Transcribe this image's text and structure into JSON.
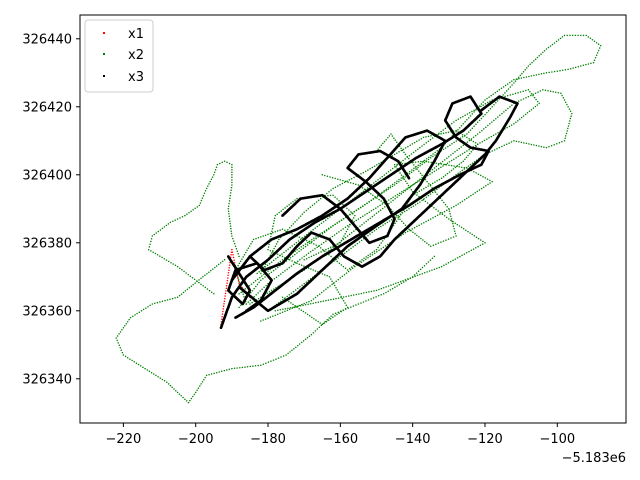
{
  "chart_data": {
    "type": "scatter",
    "title": "",
    "xlabel": "",
    "ylabel": "",
    "x_offset_label": "−5.183e6",
    "xlim": [
      -232,
      -81
    ],
    "ylim": [
      326327,
      326447
    ],
    "x_ticks": [
      -220,
      -200,
      -180,
      -160,
      -140,
      -120,
      -100
    ],
    "x_tick_labels": [
      "−220",
      "−200",
      "−180",
      "−160",
      "−140",
      "−120",
      "−100"
    ],
    "y_ticks": [
      326340,
      326360,
      326380,
      326400,
      326420,
      326440
    ],
    "y_tick_labels": [
      "326340",
      "326360",
      "326380",
      "326400",
      "326420",
      "326440"
    ],
    "grid": false,
    "legend_position": "top-left",
    "series": [
      {
        "name": "x1",
        "color": "#ff0000",
        "paths": [
          [
            [
              -193,
              326356
            ],
            [
              -190,
              326378
            ],
            [
              -188,
              326368
            ],
            [
              -185,
              326364
            ]
          ]
        ]
      },
      {
        "name": "x2",
        "color": "#008000",
        "paths": [
          [
            [
              -192,
              326375
            ],
            [
              -198,
              326370
            ],
            [
              -205,
              326364
            ],
            [
              -212,
              326362
            ],
            [
              -218,
              326358
            ],
            [
              -222,
              326352
            ],
            [
              -220,
              326347
            ],
            [
              -214,
              326343
            ],
            [
              -208,
              326339
            ],
            [
              -204,
              326335
            ],
            [
              -202,
              326333
            ],
            [
              -200,
              326336
            ],
            [
              -197,
              326341
            ],
            [
              -190,
              326343
            ],
            [
              -182,
              326344
            ],
            [
              -175,
              326347
            ],
            [
              -168,
              326353
            ],
            [
              -162,
              326359
            ],
            [
              -155,
              326362
            ],
            [
              -148,
              326365
            ],
            [
              -140,
              326370
            ],
            [
              -134,
              326376
            ]
          ],
          [
            [
              -195,
              326365
            ],
            [
              -205,
              326373
            ],
            [
              -213,
              326378
            ],
            [
              -212,
              326382
            ],
            [
              -207,
              326386
            ],
            [
              -203,
              326388
            ],
            [
              -199,
              326391
            ],
            [
              -197,
              326396
            ],
            [
              -195,
              326400
            ],
            [
              -194,
              326403
            ],
            [
              -192,
              326404
            ],
            [
              -190,
              326403
            ],
            [
              -190,
              326397
            ],
            [
              -191,
              326390
            ],
            [
              -190,
              326382
            ],
            [
              -188,
              326376
            ]
          ],
          [
            [
              -188,
              326365
            ],
            [
              -176,
              326375
            ],
            [
              -165,
              326383
            ],
            [
              -155,
              326390
            ],
            [
              -145,
              326397
            ],
            [
              -135,
              326405
            ],
            [
              -125,
              326412
            ],
            [
              -118,
              326420
            ],
            [
              -112,
              326427
            ],
            [
              -108,
              326432
            ],
            [
              -103,
              326437
            ],
            [
              -98,
              326441
            ],
            [
              -92,
              326441
            ],
            [
              -88,
              326438
            ],
            [
              -90,
              326433
            ],
            [
              -97,
              326431
            ],
            [
              -103,
              326430
            ],
            [
              -112,
              326428
            ],
            [
              -120,
              326422
            ],
            [
              -126,
              326415
            ],
            [
              -132,
              326408
            ],
            [
              -142,
              326400
            ],
            [
              -152,
              326392
            ],
            [
              -162,
              326385
            ],
            [
              -172,
              326377
            ],
            [
              -182,
              326369
            ],
            [
              -188,
              326361
            ]
          ],
          [
            [
              -185,
              326362
            ],
            [
              -170,
              326372
            ],
            [
              -158,
              326382
            ],
            [
              -146,
              326392
            ],
            [
              -134,
              326402
            ],
            [
              -122,
              326412
            ],
            [
              -112,
              326421
            ],
            [
              -104,
              326425
            ],
            [
              -99,
              326424
            ],
            [
              -96,
              326418
            ],
            [
              -98,
              326410
            ],
            [
              -103,
              326408
            ],
            [
              -112,
              326410
            ],
            [
              -120,
              326406
            ],
            [
              -128,
              326400
            ],
            [
              -138,
              326392
            ],
            [
              -150,
              326384
            ],
            [
              -160,
              326376
            ],
            [
              -170,
              326368
            ],
            [
              -180,
              326360
            ]
          ],
          [
            [
              -183,
              326371
            ],
            [
              -171,
              326381
            ],
            [
              -160,
              326390
            ],
            [
              -149,
              326399
            ],
            [
              -138,
              326408
            ],
            [
              -128,
              326416
            ],
            [
              -118,
              326422
            ],
            [
              -108,
              326425
            ],
            [
              -105,
              326421
            ],
            [
              -112,
              326415
            ],
            [
              -122,
              326409
            ],
            [
              -134,
              326401
            ],
            [
              -146,
              326393
            ],
            [
              -158,
              326385
            ],
            [
              -170,
              326376
            ],
            [
              -180,
              326368
            ],
            [
              -186,
              326362
            ]
          ],
          [
            [
              -182,
              326357
            ],
            [
              -168,
              326363
            ],
            [
              -156,
              326373
            ],
            [
              -142,
              326383
            ],
            [
              -128,
              326391
            ],
            [
              -118,
              326398
            ],
            [
              -125,
              326402
            ],
            [
              -137,
              326404
            ],
            [
              -145,
              326403
            ],
            [
              -140,
              326395
            ],
            [
              -130,
              326387
            ],
            [
              -120,
              326380
            ],
            [
              -132,
              326373
            ],
            [
              -150,
              326366
            ],
            [
              -164,
              326363
            ],
            [
              -178,
              326360
            ]
          ],
          [
            [
              -176,
              326364
            ],
            [
              -165,
              326356
            ],
            [
              -158,
              326361
            ],
            [
              -163,
              326370
            ],
            [
              -172,
              326374
            ],
            [
              -180,
              326378
            ],
            [
              -178,
              326388
            ],
            [
              -172,
              326393
            ],
            [
              -162,
              326394
            ],
            [
              -156,
              326388
            ],
            [
              -160,
              326380
            ],
            [
              -170,
              326375
            ]
          ],
          [
            [
              -186,
              326362
            ],
            [
              -189,
              326372
            ],
            [
              -184,
              326381
            ],
            [
              -176,
              326384
            ],
            [
              -166,
              326379
            ],
            [
              -158,
              326372
            ],
            [
              -150,
              326378
            ],
            [
              -144,
              326387
            ],
            [
              -140,
              326394
            ],
            [
              -132,
              326399
            ],
            [
              -126,
              326404
            ],
            [
              -122,
              326409
            ],
            [
              -128,
              326413
            ],
            [
              -137,
              326411
            ],
            [
              -145,
              326406
            ],
            [
              -153,
              326401
            ],
            [
              -162,
              326396
            ],
            [
              -170,
              326389
            ],
            [
              -177,
              326381
            ],
            [
              -182,
              326371
            ]
          ],
          [
            [
              -165,
              326400
            ],
            [
              -155,
              326397
            ],
            [
              -147,
              326391
            ],
            [
              -141,
              326384
            ],
            [
              -135,
              326379
            ],
            [
              -128,
              326382
            ],
            [
              -130,
              326390
            ],
            [
              -136,
              326398
            ],
            [
              -142,
              326406
            ],
            [
              -146,
              326412
            ],
            [
              -150,
              326407
            ]
          ]
        ]
      },
      {
        "name": "x3",
        "color": "#000000",
        "paths": [
          [
            [
              -193,
              326355
            ],
            [
              -190,
              326364
            ],
            [
              -186,
              326370
            ],
            [
              -180,
              326375
            ],
            [
              -174,
              326381
            ],
            [
              -167,
              326386
            ],
            [
              -160,
              326390
            ],
            [
              -153,
              326395
            ],
            [
              -146,
              326400
            ],
            [
              -139,
              326405
            ],
            [
              -132,
              326409
            ],
            [
              -126,
              326413
            ],
            [
              -121,
              326418
            ],
            [
              -124,
              326423
            ],
            [
              -129,
              326421
            ],
            [
              -131,
              326416
            ],
            [
              -128,
              326411
            ],
            [
              -124,
              326408
            ],
            [
              -119,
              326407
            ],
            [
              -121,
              326403
            ],
            [
              -127,
              326400
            ],
            [
              -134,
              326396
            ],
            [
              -141,
              326391
            ],
            [
              -149,
              326386
            ],
            [
              -157,
              326381
            ],
            [
              -165,
              326376
            ],
            [
              -172,
              326371
            ],
            [
              -178,
              326366
            ],
            [
              -184,
              326361
            ],
            [
              -189,
              326358
            ]
          ],
          [
            [
              -188,
              326367
            ],
            [
              -180,
              326360
            ],
            [
              -172,
              326365
            ],
            [
              -165,
              326372
            ],
            [
              -158,
              326379
            ],
            [
              -150,
              326385
            ],
            [
              -143,
              326390
            ],
            [
              -138,
              326397
            ],
            [
              -134,
              326404
            ],
            [
              -131,
              326410
            ],
            [
              -136,
              326413
            ],
            [
              -142,
              326411
            ],
            [
              -147,
              326405
            ],
            [
              -152,
              326399
            ],
            [
              -158,
              326393
            ],
            [
              -165,
              326388
            ],
            [
              -172,
              326384
            ],
            [
              -179,
              326381
            ],
            [
              -185,
              326376
            ],
            [
              -190,
              326369
            ]
          ],
          [
            [
              -176,
              326388
            ],
            [
              -171,
              326393
            ],
            [
              -165,
              326394
            ],
            [
              -160,
              326390
            ],
            [
              -156,
              326385
            ],
            [
              -152,
              326380
            ],
            [
              -147,
              326382
            ],
            [
              -145,
              326387
            ],
            [
              -148,
              326393
            ],
            [
              -153,
              326398
            ],
            [
              -158,
              326402
            ],
            [
              -155,
              326406
            ],
            [
              -149,
              326407
            ],
            [
              -144,
              326404
            ],
            [
              -141,
              326399
            ]
          ],
          [
            [
              -185,
              326376
            ],
            [
              -181,
              326372
            ],
            [
              -176,
              326374
            ],
            [
              -172,
              326379
            ],
            [
              -168,
              326383
            ],
            [
              -163,
              326381
            ],
            [
              -159,
              326376
            ],
            [
              -154,
              326373
            ],
            [
              -149,
              326376
            ],
            [
              -145,
              326381
            ],
            [
              -140,
              326386
            ],
            [
              -135,
              326391
            ],
            [
              -130,
              326396
            ],
            [
              -125,
              326401
            ],
            [
              -120,
              326406
            ],
            [
              -117,
              326410
            ],
            [
              -113,
              326417
            ],
            [
              -111,
              326421
            ],
            [
              -116,
              326423
            ],
            [
              -121,
              326419
            ]
          ],
          [
            [
              -191,
              326376
            ],
            [
              -188,
              326371
            ],
            [
              -185,
              326366
            ],
            [
              -187,
              326362
            ],
            [
              -191,
              326366
            ],
            [
              -189,
              326372
            ],
            [
              -183,
              326374
            ],
            [
              -179,
              326369
            ],
            [
              -182,
              326363
            ],
            [
              -186,
              326360
            ]
          ]
        ]
      }
    ]
  }
}
